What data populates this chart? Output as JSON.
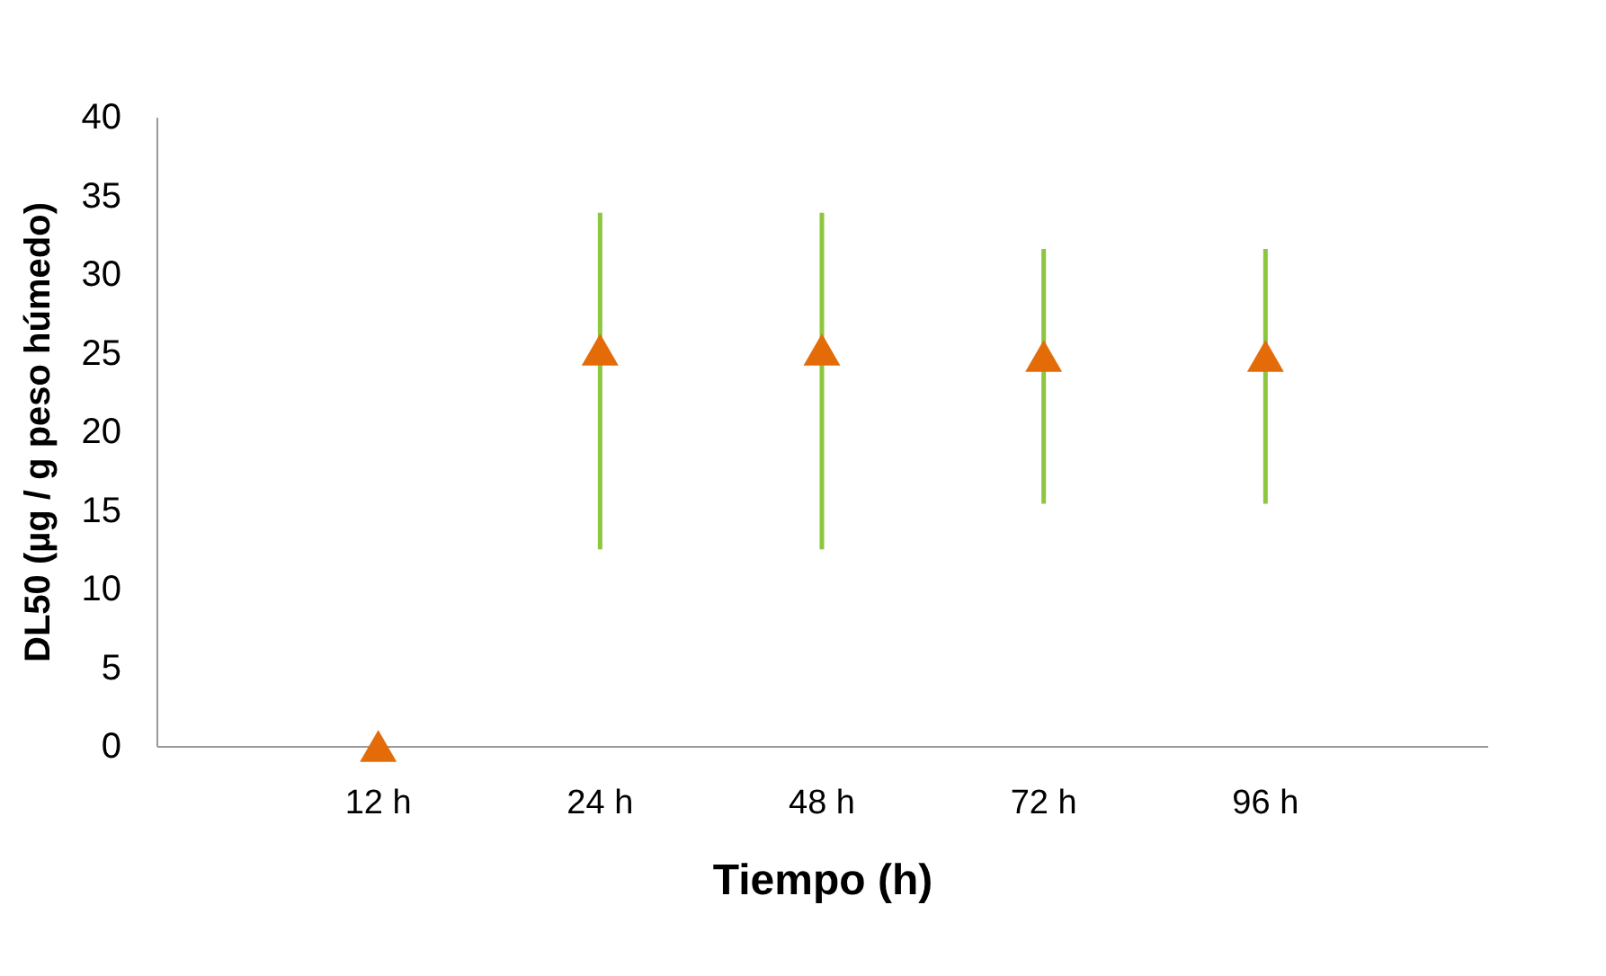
{
  "chart_data": {
    "type": "scatter",
    "xlabel": "Tiempo (h)",
    "ylabel": "DL50 (µg / g peso húmedo)",
    "categories": [
      "12 h",
      "24 h",
      "48 h",
      "72 h",
      "96 h"
    ],
    "series": [
      {
        "color": "#e36c09",
        "values": [
          0,
          25.2,
          25.2,
          24.8,
          24.8
        ],
        "errors": [
          null,
          [
            12.5,
            33.9
          ],
          [
            12.5,
            33.9
          ],
          [
            15.4,
            31.6
          ],
          [
            15.4,
            31.6
          ]
        ]
      }
    ],
    "marker": "triangle",
    "ylim": [
      0,
      40
    ],
    "yticks": [
      0,
      5,
      10,
      15,
      20,
      25,
      30,
      35,
      40
    ],
    "grid": false
  }
}
